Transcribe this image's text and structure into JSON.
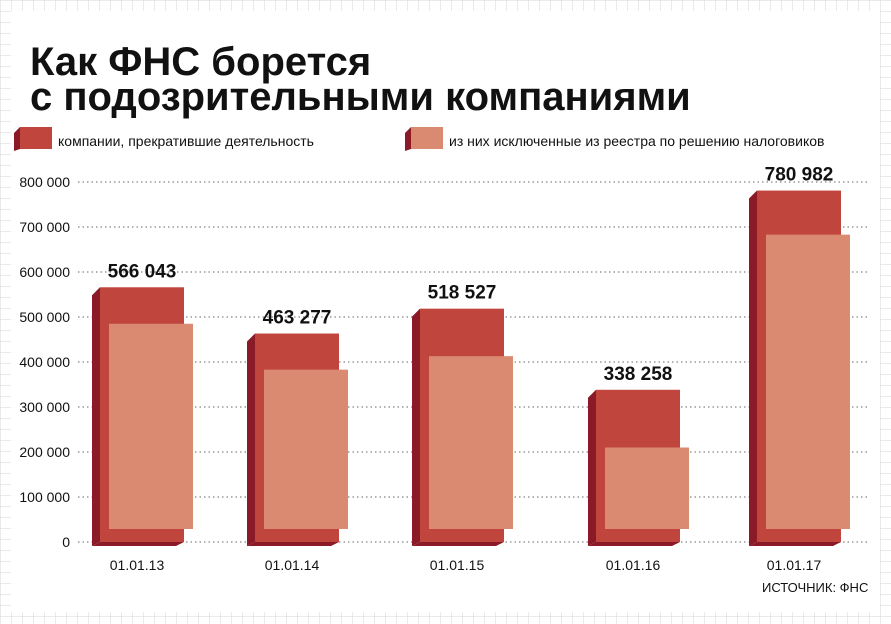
{
  "chart_data": {
    "type": "bar",
    "title": "Как ФНС борется с подозрительными компаниями",
    "title_lines": [
      "Как ФНС борется",
      "с подозрительными компаниями"
    ],
    "categories": [
      "01.01.13",
      "01.01.14",
      "01.01.15",
      "01.01.16",
      "01.01.17"
    ],
    "series": [
      {
        "name": "компании, прекратившие деятельность",
        "color": "#c0453c",
        "values": [
          566043,
          463277,
          518527,
          338258,
          780982
        ]
      },
      {
        "name": "из них исключенные из реестра по решению налоговиков",
        "color": "#db8a72",
        "values": [
          485000,
          383000,
          413000,
          210000,
          683000
        ]
      }
    ],
    "data_labels": [
      "566 043",
      "463 277",
      "518 527",
      "338 258",
      "780 982"
    ],
    "ylim": [
      0,
      800000
    ],
    "yticks": [
      0,
      100000,
      200000,
      300000,
      400000,
      500000,
      600000,
      700000,
      800000
    ],
    "ytick_labels": [
      "0",
      "100 000",
      "200 000",
      "300 000",
      "400 000",
      "500 000",
      "600 000",
      "700 000",
      "800 000"
    ],
    "grid": true,
    "legend_position": "top",
    "source": "ИСТОЧНИК: ФНС"
  }
}
